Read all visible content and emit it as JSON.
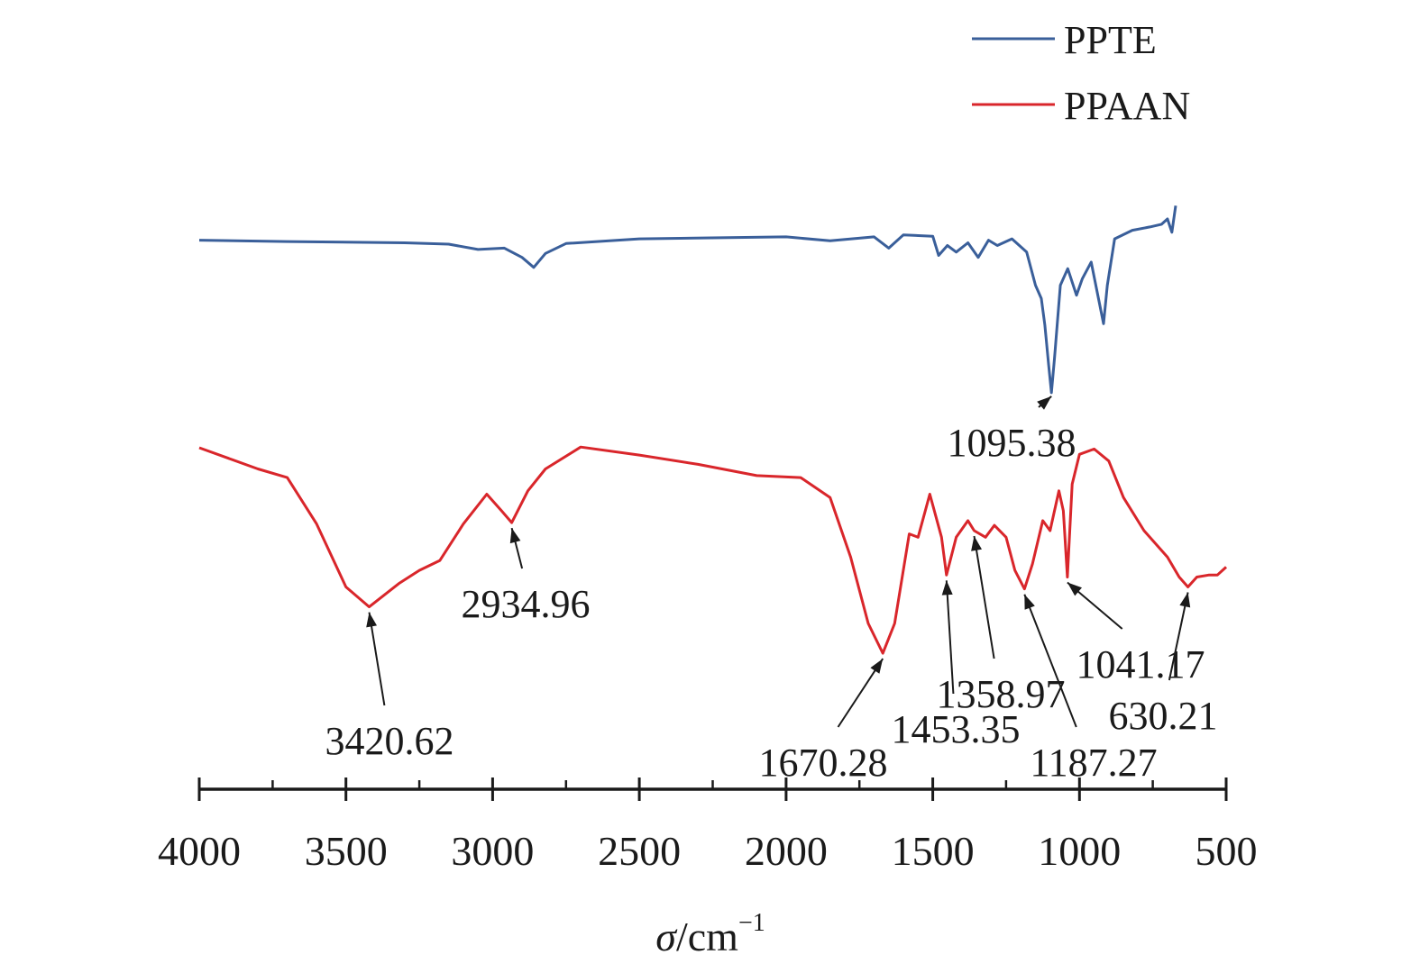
{
  "chart_data": {
    "type": "line",
    "xlabel": "σ/cm",
    "xlabel_superscript": "−1",
    "xlim": [
      4000,
      500
    ],
    "x_ticks": [
      4000,
      3500,
      3000,
      2500,
      2000,
      1500,
      1000,
      500
    ],
    "x_tick_labels": [
      "4000",
      "3500",
      "3000",
      "2500",
      "2000",
      "1500",
      "1000",
      "500"
    ],
    "ylim": [
      0,
      100
    ],
    "y_axis_shown": false,
    "grid": false,
    "legend_position": "top-right",
    "series": [
      {
        "name": "PPTE",
        "color": "#3a5f9a",
        "points": [
          [
            4000,
            82.8
          ],
          [
            3700,
            82.6
          ],
          [
            3300,
            82.4
          ],
          [
            3150,
            82.2
          ],
          [
            3050,
            81.4
          ],
          [
            2960,
            81.6
          ],
          [
            2900,
            80.2
          ],
          [
            2860,
            78.7
          ],
          [
            2820,
            80.8
          ],
          [
            2750,
            82.3
          ],
          [
            2500,
            83.0
          ],
          [
            2000,
            83.3
          ],
          [
            1850,
            82.7
          ],
          [
            1700,
            83.3
          ],
          [
            1650,
            81.6
          ],
          [
            1600,
            83.6
          ],
          [
            1500,
            83.4
          ],
          [
            1480,
            80.5
          ],
          [
            1450,
            82.0
          ],
          [
            1420,
            81.0
          ],
          [
            1380,
            82.4
          ],
          [
            1345,
            80.2
          ],
          [
            1310,
            82.8
          ],
          [
            1280,
            82.0
          ],
          [
            1230,
            83.0
          ],
          [
            1180,
            81.0
          ],
          [
            1150,
            76.0
          ],
          [
            1130,
            74.0
          ],
          [
            1118,
            70.0
          ],
          [
            1105,
            64.0
          ],
          [
            1095.38,
            59.8
          ],
          [
            1085,
            65.0
          ],
          [
            1065,
            76.0
          ],
          [
            1040,
            78.5
          ],
          [
            1010,
            74.5
          ],
          [
            990,
            77.0
          ],
          [
            960,
            79.5
          ],
          [
            935,
            74.0
          ],
          [
            918,
            70.2
          ],
          [
            905,
            76.0
          ],
          [
            880,
            83.0
          ],
          [
            820,
            84.3
          ],
          [
            760,
            84.8
          ],
          [
            720,
            85.2
          ],
          [
            700,
            86.0
          ],
          [
            685,
            84.0
          ],
          [
            672,
            88.0
          ]
        ]
      },
      {
        "name": "PPAAN",
        "color": "#d9262b",
        "points": [
          [
            4000,
            51.5
          ],
          [
            3800,
            48.3
          ],
          [
            3700,
            47.0
          ],
          [
            3600,
            40.0
          ],
          [
            3500,
            30.5
          ],
          [
            3420.62,
            27.5
          ],
          [
            3320,
            31.0
          ],
          [
            3250,
            33.0
          ],
          [
            3180,
            34.5
          ],
          [
            3100,
            40.0
          ],
          [
            3020,
            44.5
          ],
          [
            2970,
            42.0
          ],
          [
            2934.96,
            40.2
          ],
          [
            2880,
            45.0
          ],
          [
            2820,
            48.3
          ],
          [
            2700,
            51.6
          ],
          [
            2500,
            50.4
          ],
          [
            2300,
            49.0
          ],
          [
            2100,
            47.3
          ],
          [
            1950,
            47.0
          ],
          [
            1850,
            44.0
          ],
          [
            1780,
            35.0
          ],
          [
            1720,
            25.0
          ],
          [
            1670.28,
            20.5
          ],
          [
            1630,
            25.0
          ],
          [
            1580,
            38.5
          ],
          [
            1550,
            38.0
          ],
          [
            1510,
            44.5
          ],
          [
            1470,
            38.0
          ],
          [
            1453.35,
            32.3
          ],
          [
            1420,
            38.0
          ],
          [
            1380,
            40.5
          ],
          [
            1358.97,
            39.0
          ],
          [
            1320,
            38.0
          ],
          [
            1290,
            39.8
          ],
          [
            1250,
            38.0
          ],
          [
            1220,
            33.0
          ],
          [
            1187.27,
            30.2
          ],
          [
            1160,
            34.0
          ],
          [
            1125,
            40.5
          ],
          [
            1100,
            39.0
          ],
          [
            1070,
            45.0
          ],
          [
            1055,
            42.0
          ],
          [
            1041.17,
            32.0
          ],
          [
            1025,
            46.0
          ],
          [
            1000,
            50.5
          ],
          [
            950,
            51.3
          ],
          [
            900,
            49.5
          ],
          [
            850,
            44.0
          ],
          [
            780,
            39.0
          ],
          [
            700,
            35.0
          ],
          [
            660,
            32.0
          ],
          [
            630.21,
            30.5
          ],
          [
            600,
            32.0
          ],
          [
            560,
            32.3
          ],
          [
            530,
            32.3
          ],
          [
            500,
            33.5
          ]
        ]
      }
    ],
    "annotations": [
      {
        "series": "PPTE",
        "label": "1095.38",
        "x": 1095.38
      },
      {
        "series": "PPAAN",
        "label": "3420.62",
        "x": 3420.62
      },
      {
        "series": "PPAAN",
        "label": "2934.96",
        "x": 2934.96
      },
      {
        "series": "PPAAN",
        "label": "1670.28",
        "x": 1670.28
      },
      {
        "series": "PPAAN",
        "label": "1453.35",
        "x": 1453.35
      },
      {
        "series": "PPAAN",
        "label": "1358.97",
        "x": 1358.97
      },
      {
        "series": "PPAAN",
        "label": "1187.27",
        "x": 1187.27
      },
      {
        "series": "PPAAN",
        "label": "1041.17",
        "x": 1041.17
      },
      {
        "series": "PPAAN",
        "label": "630.21",
        "x": 630.21
      }
    ]
  }
}
